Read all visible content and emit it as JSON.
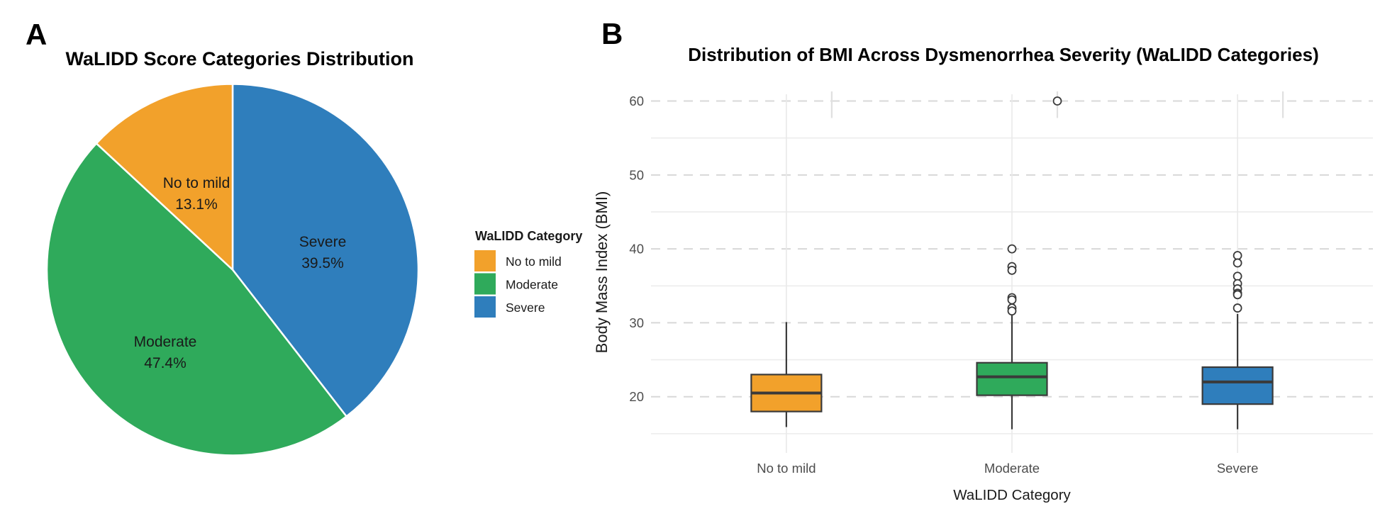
{
  "figure": {
    "panel_a": {
      "panel_label": "A",
      "title": "WaLIDD Score Categories Distribution",
      "legend": {
        "title": "WaLIDD Category",
        "items": [
          {
            "label": "No to mild",
            "color": "#F2A12B"
          },
          {
            "label": "Moderate",
            "color": "#2FAA5B"
          },
          {
            "label": "Severe",
            "color": "#2F7EBC"
          }
        ]
      }
    },
    "panel_b": {
      "panel_label": "B",
      "title": "Distribution of BMI Across Dysmenorrhea Severity (WaLIDD Categories)",
      "x_label": "WaLIDD Category",
      "y_label": "Body Mass Index (BMI)"
    }
  },
  "chart_data": [
    {
      "type": "pie",
      "title": "WaLIDD Score Categories Distribution",
      "legend_title": "WaLIDD Category",
      "legend_position": "right",
      "slices_clockwise_from_top": [
        {
          "label": "Severe",
          "pct": 39.5,
          "color": "#2F7EBC"
        },
        {
          "label": "Moderate",
          "pct": 47.4,
          "color": "#2FAA5B"
        },
        {
          "label": "No to mild",
          "pct": 13.1,
          "color": "#F2A12B"
        }
      ]
    },
    {
      "type": "boxplot",
      "title": "Distribution of BMI Across Dysmenorrhea Severity (WaLIDD Categories)",
      "xlabel": "WaLIDD Category",
      "ylabel": "Body Mass Index (BMI)",
      "y_ticks": [
        20,
        30,
        40,
        50,
        60
      ],
      "y_minor_ticks": [
        15,
        25,
        35,
        45,
        55
      ],
      "ylim": [
        12.4,
        61.2
      ],
      "grid": {
        "major": "dashed",
        "minor": "solid",
        "vertical_at_categories": true
      },
      "categories": [
        "No to mild",
        "Moderate",
        "Severe"
      ],
      "boxes": [
        {
          "category": "No to mild",
          "color": "#F2A12B",
          "whisker_low": 15.9,
          "q1": 18.0,
          "median": 20.5,
          "q3": 23.0,
          "whisker_high": 30.1,
          "outliers": []
        },
        {
          "category": "Moderate",
          "color": "#2FAA5B",
          "whisker_low": 15.6,
          "q1": 20.2,
          "median": 22.7,
          "q3": 24.6,
          "whisker_high": 31.4,
          "outliers": [
            {
              "v": 60,
              "dx": 64
            },
            {
              "v": 40,
              "dx": 0
            },
            {
              "v": 37.6,
              "dx": 0
            },
            {
              "v": 37.1,
              "dx": 0
            },
            {
              "v": 33.4,
              "dx": 0
            },
            {
              "v": 33.1,
              "dx": 0
            },
            {
              "v": 32.0,
              "dx": 0
            },
            {
              "v": 31.6,
              "dx": 0
            }
          ]
        },
        {
          "category": "Severe",
          "color": "#2F7EBC",
          "whisker_low": 15.6,
          "q1": 19.0,
          "median": 22.0,
          "q3": 24.0,
          "whisker_high": 31.2,
          "outliers": [
            {
              "v": 39.1,
              "dx": 0
            },
            {
              "v": 38.1,
              "dx": 0
            },
            {
              "v": 36.3,
              "dx": 0
            },
            {
              "v": 35.3,
              "dx": 0
            },
            {
              "v": 34.6,
              "dx": 0
            },
            {
              "v": 34.0,
              "dx": 0
            },
            {
              "v": 33.8,
              "dx": 0
            },
            {
              "v": 32.0,
              "dx": 0
            }
          ]
        }
      ],
      "artifact_marks": {
        "dx": 64,
        "v_top": 61.3,
        "v_bottom": 57.7
      }
    }
  ]
}
